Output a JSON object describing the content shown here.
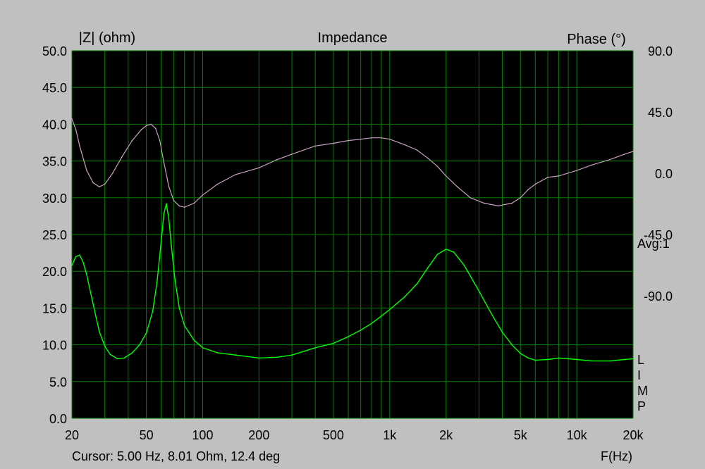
{
  "header": {
    "left_axis_title": "|Z| (ohm)",
    "title": "Impedance",
    "right_axis_title": "Phase (°)"
  },
  "side_labels": {
    "avg": "Avg:1",
    "limp_letters": [
      "L",
      "I",
      "M",
      "P"
    ]
  },
  "footer": {
    "cursor_readout": "Cursor: 5.00 Hz, 8.01 Ohm, 12.4 deg",
    "x_axis_title": "F(Hz)"
  },
  "colors": {
    "background": "#c0c0c0",
    "plot_background": "#000000",
    "grid": "#008000",
    "impedance": "#00ff00",
    "phase": "#c8a0c0"
  },
  "chart_data": {
    "type": "line",
    "title": "Impedance",
    "xlabel": "F(Hz)",
    "ylabel": "|Z| (ohm)",
    "y2label": "Phase (°)",
    "x_scale": "log",
    "xlim": [
      20,
      20000
    ],
    "ylim": [
      0,
      50
    ],
    "y2lim": [
      -180,
      90
    ],
    "grid": true,
    "x_ticks": [
      {
        "value": 20,
        "label": "20"
      },
      {
        "value": 50,
        "label": "50"
      },
      {
        "value": 100,
        "label": "100"
      },
      {
        "value": 200,
        "label": "200"
      },
      {
        "value": 500,
        "label": "500"
      },
      {
        "value": 1000,
        "label": "1k"
      },
      {
        "value": 2000,
        "label": "2k"
      },
      {
        "value": 5000,
        "label": "5k"
      },
      {
        "value": 10000,
        "label": "10k"
      },
      {
        "value": 20000,
        "label": "20k"
      }
    ],
    "x_minor_grid": [
      30,
      40,
      60,
      70,
      80,
      90,
      300,
      400,
      600,
      700,
      800,
      900,
      3000,
      4000,
      6000,
      7000,
      8000,
      9000
    ],
    "y_ticks": [
      "0.0",
      "5.0",
      "10.0",
      "15.0",
      "20.0",
      "25.0",
      "30.0",
      "35.0",
      "40.0",
      "45.0",
      "50.0"
    ],
    "y2_ticks": [
      {
        "value": 90,
        "label": "90.0"
      },
      {
        "value": 45,
        "label": "45.0"
      },
      {
        "value": 0,
        "label": "0.0"
      },
      {
        "value": -45,
        "label": "-45.0"
      },
      {
        "value": -90,
        "label": "-90.0"
      }
    ],
    "series": [
      {
        "role": "impedance",
        "axis": "left",
        "points": [
          [
            20,
            20.8
          ],
          [
            21,
            22.0
          ],
          [
            22,
            22.2
          ],
          [
            23,
            21.2
          ],
          [
            24,
            19.5
          ],
          [
            26,
            15.5
          ],
          [
            28,
            11.8
          ],
          [
            30,
            9.8
          ],
          [
            32,
            8.7
          ],
          [
            35,
            8.1
          ],
          [
            38,
            8.2
          ],
          [
            42,
            8.9
          ],
          [
            46,
            10.0
          ],
          [
            50,
            11.6
          ],
          [
            54,
            14.5
          ],
          [
            57,
            18.5
          ],
          [
            60,
            24.0
          ],
          [
            62,
            27.8
          ],
          [
            64,
            29.2
          ],
          [
            66,
            27.0
          ],
          [
            68,
            23.5
          ],
          [
            71,
            19.0
          ],
          [
            75,
            15.0
          ],
          [
            80,
            12.6
          ],
          [
            90,
            10.6
          ],
          [
            100,
            9.6
          ],
          [
            120,
            8.9
          ],
          [
            150,
            8.6
          ],
          [
            200,
            8.2
          ],
          [
            250,
            8.3
          ],
          [
            300,
            8.6
          ],
          [
            400,
            9.6
          ],
          [
            500,
            10.2
          ],
          [
            600,
            11.1
          ],
          [
            700,
            12.0
          ],
          [
            800,
            12.9
          ],
          [
            900,
            13.9
          ],
          [
            1000,
            14.8
          ],
          [
            1200,
            16.5
          ],
          [
            1400,
            18.3
          ],
          [
            1600,
            20.5
          ],
          [
            1800,
            22.3
          ],
          [
            2000,
            23.0
          ],
          [
            2200,
            22.6
          ],
          [
            2500,
            20.8
          ],
          [
            3000,
            17.3
          ],
          [
            3500,
            14.2
          ],
          [
            4000,
            11.7
          ],
          [
            4500,
            10.0
          ],
          [
            5000,
            8.8
          ],
          [
            5500,
            8.2
          ],
          [
            6000,
            7.9
          ],
          [
            7000,
            8.0
          ],
          [
            8000,
            8.2
          ],
          [
            9000,
            8.1
          ],
          [
            10000,
            8.0
          ],
          [
            12000,
            7.8
          ],
          [
            15000,
            7.8
          ],
          [
            18000,
            8.0
          ],
          [
            20000,
            8.1
          ]
        ]
      },
      {
        "role": "phase",
        "axis": "right",
        "points": [
          [
            20,
            40
          ],
          [
            21,
            32
          ],
          [
            22,
            20
          ],
          [
            24,
            2
          ],
          [
            26,
            -7
          ],
          [
            28,
            -10
          ],
          [
            30,
            -8
          ],
          [
            33,
            0
          ],
          [
            37,
            12
          ],
          [
            42,
            24
          ],
          [
            47,
            32
          ],
          [
            50,
            35
          ],
          [
            53,
            36
          ],
          [
            56,
            33
          ],
          [
            59,
            24
          ],
          [
            62,
            8
          ],
          [
            66,
            -10
          ],
          [
            70,
            -20
          ],
          [
            75,
            -24
          ],
          [
            80,
            -25
          ],
          [
            90,
            -22
          ],
          [
            100,
            -16
          ],
          [
            120,
            -8
          ],
          [
            150,
            -1
          ],
          [
            200,
            4
          ],
          [
            250,
            10
          ],
          [
            300,
            14
          ],
          [
            400,
            20
          ],
          [
            500,
            22
          ],
          [
            600,
            24
          ],
          [
            700,
            25
          ],
          [
            800,
            26
          ],
          [
            900,
            26
          ],
          [
            1000,
            25
          ],
          [
            1200,
            21
          ],
          [
            1400,
            17
          ],
          [
            1600,
            11
          ],
          [
            1800,
            5
          ],
          [
            2000,
            -2
          ],
          [
            2300,
            -10
          ],
          [
            2700,
            -18
          ],
          [
            3200,
            -22
          ],
          [
            3800,
            -24
          ],
          [
            4500,
            -22
          ],
          [
            5000,
            -18
          ],
          [
            5500,
            -12
          ],
          [
            6000,
            -8
          ],
          [
            7000,
            -3
          ],
          [
            8000,
            -2
          ],
          [
            10000,
            2
          ],
          [
            12000,
            6
          ],
          [
            15000,
            10
          ],
          [
            18000,
            14
          ],
          [
            20000,
            16
          ]
        ]
      }
    ]
  }
}
